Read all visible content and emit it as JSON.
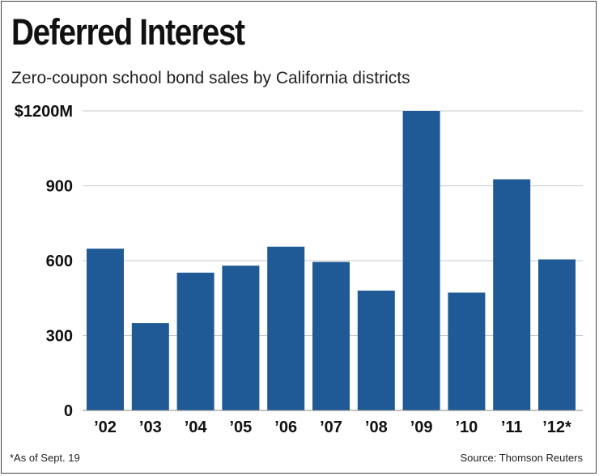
{
  "chart_data": {
    "type": "bar",
    "title": "Deferred Interest",
    "subtitle": "Zero-coupon school bond sales by California districts",
    "categories": [
      "’02",
      "’03",
      "’04",
      "’05",
      "’06",
      "’07",
      "’08",
      "’09",
      "’10",
      "’11",
      "’12*"
    ],
    "values": [
      648,
      350,
      552,
      580,
      656,
      595,
      480,
      1200,
      472,
      926,
      605
    ],
    "ylim": [
      0,
      1200
    ],
    "yticks": [
      0,
      300,
      600,
      900,
      1200
    ],
    "ytick_labels": [
      "0",
      "300",
      "600",
      "900",
      "$1200M"
    ],
    "xlabel": "",
    "ylabel": "",
    "grid": true,
    "bar_color": "#1f5a96",
    "grid_color": "#c8c8c8"
  },
  "footnote": "*As of Sept. 19",
  "source": "Source: Thomson Reuters"
}
